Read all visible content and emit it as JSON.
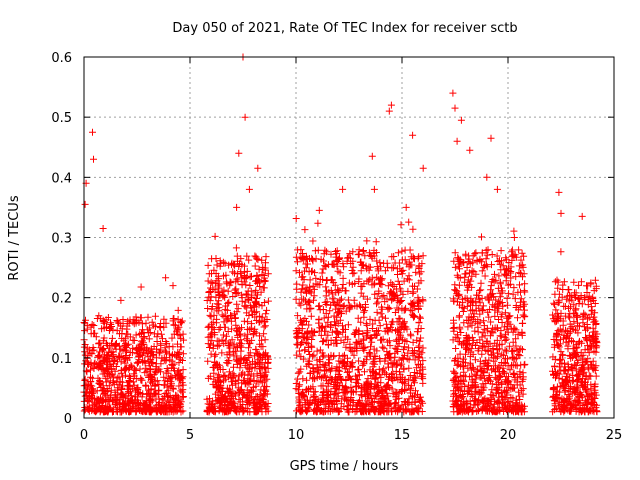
{
  "chart_data": {
    "type": "scatter",
    "title": "Day 050 of 2021, Rate Of TEC Index for receiver sctb",
    "xlabel": "GPS time / hours",
    "ylabel": "ROTI / TECUs",
    "xlim": [
      0,
      25
    ],
    "ylim": [
      0,
      0.6
    ],
    "x_ticks": [
      "0",
      "5",
      "10",
      "15",
      "20",
      "25"
    ],
    "y_ticks": [
      "0",
      "0.1",
      "0.2",
      "0.3",
      "0.4",
      "0.5",
      "0.6"
    ],
    "grid": true,
    "marker": "+",
    "color": "#ff0000",
    "segments": [
      {
        "x_start": 0.0,
        "x_end": 4.7,
        "typical_max": 0.16,
        "count": 900
      },
      {
        "x_start": 5.8,
        "x_end": 8.7,
        "typical_max": 0.26,
        "count": 700
      },
      {
        "x_start": 10.0,
        "x_end": 16.0,
        "typical_max": 0.27,
        "count": 1300
      },
      {
        "x_start": 17.4,
        "x_end": 20.8,
        "typical_max": 0.27,
        "count": 800
      },
      {
        "x_start": 22.1,
        "x_end": 24.2,
        "typical_max": 0.22,
        "count": 500
      }
    ],
    "notable_points": [
      {
        "x": 0.1,
        "y": 0.39
      },
      {
        "x": 0.05,
        "y": 0.355
      },
      {
        "x": 0.4,
        "y": 0.475
      },
      {
        "x": 0.45,
        "y": 0.43
      },
      {
        "x": 0.9,
        "y": 0.315
      },
      {
        "x": 4.2,
        "y": 0.22
      },
      {
        "x": 7.5,
        "y": 0.6
      },
      {
        "x": 7.6,
        "y": 0.5
      },
      {
        "x": 7.3,
        "y": 0.44
      },
      {
        "x": 8.2,
        "y": 0.415
      },
      {
        "x": 7.8,
        "y": 0.38
      },
      {
        "x": 7.2,
        "y": 0.35
      },
      {
        "x": 11.1,
        "y": 0.345
      },
      {
        "x": 12.2,
        "y": 0.38
      },
      {
        "x": 13.6,
        "y": 0.435
      },
      {
        "x": 13.7,
        "y": 0.38
      },
      {
        "x": 14.4,
        "y": 0.51
      },
      {
        "x": 14.5,
        "y": 0.52
      },
      {
        "x": 15.5,
        "y": 0.47
      },
      {
        "x": 16.0,
        "y": 0.415
      },
      {
        "x": 15.2,
        "y": 0.35
      },
      {
        "x": 17.4,
        "y": 0.54
      },
      {
        "x": 17.5,
        "y": 0.515
      },
      {
        "x": 17.8,
        "y": 0.495
      },
      {
        "x": 17.6,
        "y": 0.46
      },
      {
        "x": 18.2,
        "y": 0.445
      },
      {
        "x": 19.2,
        "y": 0.465
      },
      {
        "x": 19.0,
        "y": 0.4
      },
      {
        "x": 19.5,
        "y": 0.38
      },
      {
        "x": 20.3,
        "y": 0.3
      },
      {
        "x": 22.4,
        "y": 0.375
      },
      {
        "x": 22.5,
        "y": 0.34
      },
      {
        "x": 23.5,
        "y": 0.335
      }
    ]
  }
}
